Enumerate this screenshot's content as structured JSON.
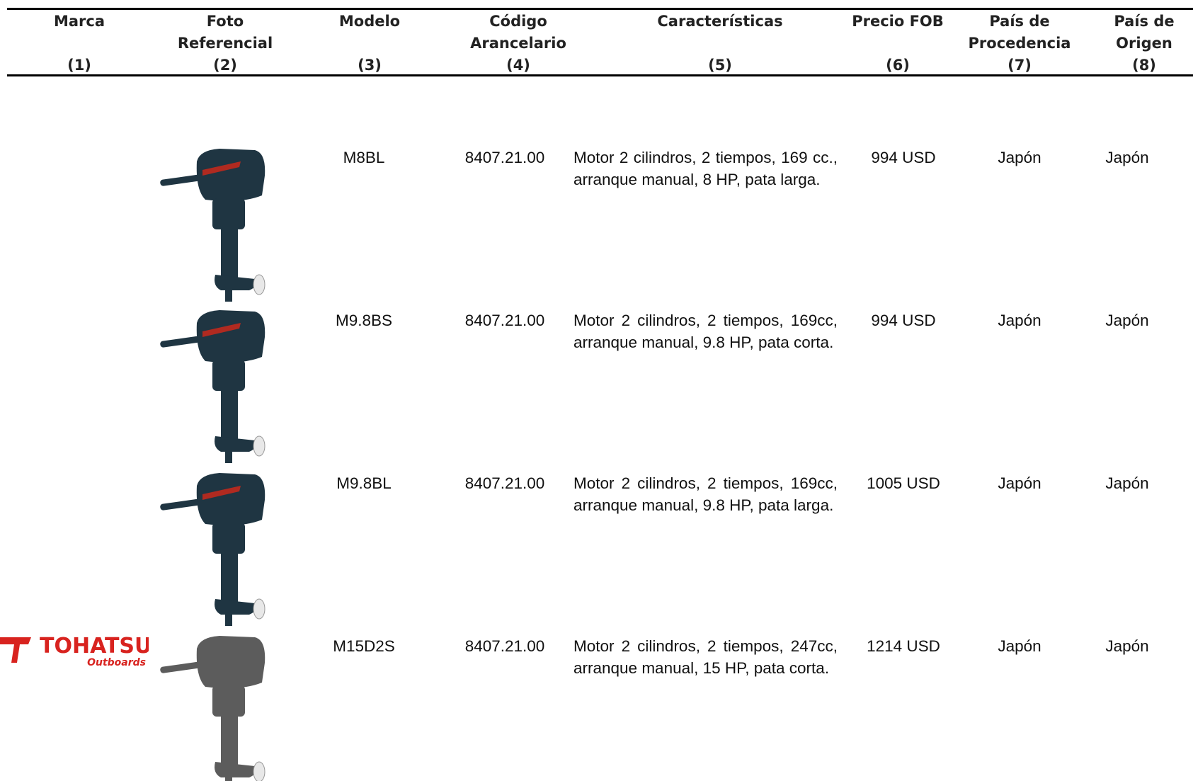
{
  "headers": [
    {
      "lines": [
        "Marca"
      ],
      "number": "(1)"
    },
    {
      "lines": [
        "Foto",
        "Referencial"
      ],
      "number": "(2)"
    },
    {
      "lines": [
        "Modelo"
      ],
      "number": "(3)"
    },
    {
      "lines": [
        "Código",
        "Arancelario"
      ],
      "number": "(4)"
    },
    {
      "lines": [
        "Características"
      ],
      "number": "(5)"
    },
    {
      "lines": [
        "Precio FOB"
      ],
      "number": "(6)"
    },
    {
      "lines": [
        "País de",
        "Procedencia"
      ],
      "number": "(7)"
    },
    {
      "lines": [
        "País de",
        "Origen"
      ],
      "number": "(8)"
    }
  ],
  "rows": [
    {
      "model": "M8BL",
      "code": "8407.21.00",
      "features": "Motor 2 cilindros, 2 tiempos, 169 cc., arranque manual, 8 HP, pata larga.",
      "price": "994 USD",
      "provenance": "Japón",
      "origin": "Japón"
    },
    {
      "model": "M9.8BS",
      "code": "8407.21.00",
      "features": "Motor 2 cilindros, 2 tiempos, 169cc, arranque manual, 9.8 HP, pata corta.",
      "price": "994 USD",
      "provenance": "Japón",
      "origin": "Japón"
    },
    {
      "model": "M9.8BL",
      "code": "8407.21.00",
      "features": "Motor 2 cilindros, 2 tiempos, 169cc, arranque manual, 9.8 HP, pata larga.",
      "price": "1005 USD",
      "provenance": "Japón",
      "origin": "Japón"
    },
    {
      "brand": {
        "name": "TOHATSU",
        "tagline": "Outboards"
      },
      "model": "M15D2S",
      "code": "8407.21.00",
      "features": "Motor 2 cilindros, 2 tiempos, 247cc, arranque manual, 15 HP, pata corta.",
      "price": "1214 USD",
      "provenance": "Japón",
      "origin": "Japón"
    }
  ]
}
